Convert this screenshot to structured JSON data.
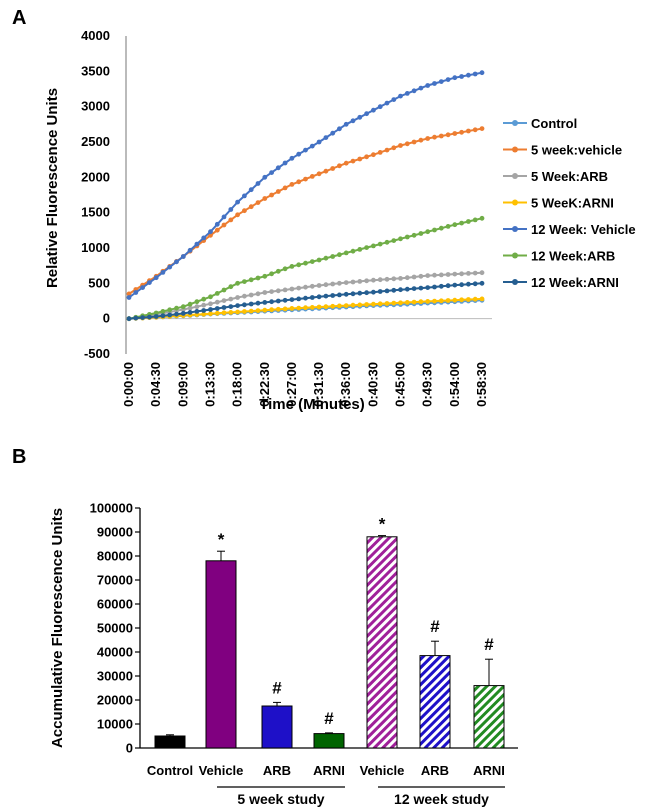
{
  "chart_data": [
    {
      "panel": "A",
      "type": "line",
      "xlabel": "Time (Minutes)",
      "ylabel": "Relative Fluorescence Units",
      "ylim": [
        -500,
        4000
      ],
      "yticks": [
        -500,
        0,
        500,
        1000,
        1500,
        2000,
        2500,
        3000,
        3500,
        4000
      ],
      "xtick_labels": [
        "0:00:00",
        "0:04:30",
        "0:09:00",
        "0:13:30",
        "0:18:00",
        "0:22:30",
        "0:27:00",
        "0:31:30",
        "0:36:00",
        "0:40:30",
        "0:45:00",
        "0:49:30",
        "0:54:00",
        "0:58:30"
      ],
      "x": [
        "0:00:00",
        "0:04:30",
        "0:09:00",
        "0:13:30",
        "0:18:00",
        "0:22:30",
        "0:27:00",
        "0:31:30",
        "0:36:00",
        "0:40:30",
        "0:45:00",
        "0:49:30",
        "0:54:00",
        "0:58:30"
      ],
      "grid": false,
      "legend": "right",
      "series": [
        {
          "name": "Control",
          "color": "#5b9bd5",
          "values": [
            0,
            20,
            40,
            65,
            85,
            105,
            125,
            145,
            165,
            185,
            200,
            220,
            240,
            260
          ]
        },
        {
          "name": "5 week:vehicle",
          "color": "#ed7d31",
          "values": [
            350,
            600,
            880,
            1180,
            1470,
            1700,
            1900,
            2050,
            2200,
            2320,
            2450,
            2550,
            2620,
            2690
          ]
        },
        {
          "name": "5 Week:ARB",
          "color": "#a5a5a5",
          "values": [
            0,
            60,
            130,
            210,
            300,
            370,
            420,
            470,
            510,
            545,
            570,
            610,
            630,
            650
          ]
        },
        {
          "name": "5 WeeK:ARNI",
          "color": "#ffc000",
          "values": [
            0,
            20,
            45,
            70,
            95,
            120,
            145,
            165,
            185,
            205,
            225,
            245,
            262,
            280
          ]
        },
        {
          "name": "12 Week: Vehicle",
          "color": "#4472c4",
          "values": [
            300,
            580,
            880,
            1230,
            1650,
            2000,
            2270,
            2500,
            2750,
            2950,
            3150,
            3300,
            3410,
            3480
          ]
        },
        {
          "name": "12 Week:ARB",
          "color": "#70ad47",
          "values": [
            0,
            80,
            170,
            310,
            500,
            600,
            740,
            830,
            930,
            1030,
            1130,
            1230,
            1330,
            1420
          ]
        },
        {
          "name": "12 Week:ARNI",
          "color": "#255e91",
          "values": [
            0,
            30,
            75,
            130,
            185,
            230,
            270,
            310,
            345,
            375,
            410,
            440,
            475,
            500
          ]
        }
      ]
    },
    {
      "panel": "B",
      "type": "bar",
      "ylabel": "Accumulative Fluorescence Units",
      "ylim": [
        0,
        100000
      ],
      "yticks": [
        0,
        10000,
        20000,
        30000,
        40000,
        50000,
        60000,
        70000,
        80000,
        90000,
        100000
      ],
      "grid": false,
      "categories": [
        "Control",
        "Vehicle",
        "ARB",
        "ARNI",
        "Vehicle",
        "ARB",
        "ARNI"
      ],
      "values": [
        5000,
        78000,
        17500,
        6000,
        88000,
        38500,
        26000
      ],
      "errors": [
        500,
        4000,
        1500,
        300,
        500,
        6000,
        11000
      ],
      "significance": [
        "",
        "*",
        "#",
        "#",
        "*",
        "#",
        "#"
      ],
      "colors": [
        "#000000",
        "#800080",
        "#1e10c8",
        "#006400",
        "#a0209a",
        "#1e10c8",
        "#228b22"
      ],
      "hatched": [
        false,
        false,
        false,
        false,
        true,
        true,
        true
      ],
      "groups": [
        {
          "label": "5 week study",
          "start": 1,
          "end": 3
        },
        {
          "label": "12 week study",
          "start": 4,
          "end": 6
        }
      ]
    }
  ],
  "panels": {
    "a": "A",
    "b": "B"
  }
}
